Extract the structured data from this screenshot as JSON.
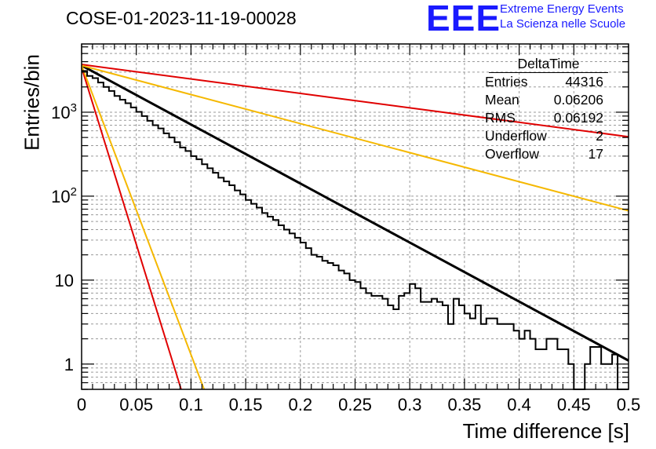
{
  "header": {
    "title": "COSE-01-2023-11-19-00028",
    "logo_text": "EEE",
    "logo_line1": "Extreme Energy Events",
    "logo_line2": "La Scienza nelle Scuole"
  },
  "stats_box": {
    "name": "DeltaTime",
    "rows": [
      {
        "label": "Entries",
        "value": "44316"
      },
      {
        "label": "Mean",
        "value": "0.06206"
      },
      {
        "label": "RMS",
        "value": "0.06192"
      },
      {
        "label": "Underflow",
        "value": "2"
      },
      {
        "label": "Overflow",
        "value": "17"
      }
    ]
  },
  "colors": {
    "histogram": "#000000",
    "fit": "#000000",
    "red": "#e00000",
    "orange": "#f5b800",
    "grid": "#9a9a9a",
    "logo": "#1a1aff"
  },
  "chart_data": {
    "type": "line",
    "xlabel": "Time difference [s]",
    "ylabel": "Entries/bin",
    "xlim": [
      0,
      0.5
    ],
    "ylim": [
      0.5,
      6500
    ],
    "y_scale": "log",
    "grid": true,
    "x_ticks": [
      "0",
      "0.05",
      "0.1",
      "0.15",
      "0.2",
      "0.25",
      "0.3",
      "0.35",
      "0.4",
      "0.45",
      "0.5"
    ],
    "y_ticks": [
      {
        "value": 1,
        "label": "1"
      },
      {
        "value": 10,
        "label": "10"
      },
      {
        "value": 100,
        "label": "10",
        "exp": "2"
      },
      {
        "value": 1000,
        "label": "10",
        "exp": "3"
      }
    ],
    "histogram": {
      "name": "DeltaTime",
      "bin_width": 0.005,
      "values": [
        3100,
        2700,
        2550,
        2260,
        2000,
        1790,
        1560,
        1410,
        1280,
        1140,
        1010,
        900,
        790,
        700,
        640,
        560,
        500,
        440,
        380,
        345,
        300,
        275,
        240,
        215,
        190,
        166,
        150,
        135,
        117,
        105,
        90,
        81,
        73,
        63,
        57,
        52,
        45,
        40,
        36,
        32,
        28,
        24,
        20,
        19,
        17,
        16,
        15,
        13,
        12,
        10,
        9.5,
        8,
        7,
        6.5,
        6.5,
        6,
        5,
        4.5,
        6.5,
        7,
        9,
        8,
        5.5,
        5.5,
        6,
        5.5,
        5,
        3,
        6,
        5,
        4,
        3.5,
        5,
        3,
        3.5,
        3.5,
        3,
        3,
        3,
        2.5,
        2,
        2.5,
        2,
        1.5,
        1.5,
        2,
        2,
        1.5,
        1.5,
        1,
        0.5,
        0.5,
        1,
        1.6,
        1.6,
        1,
        1,
        1.3,
        0.5,
        0.5
      ]
    },
    "series": [
      {
        "x": [
          0,
          0.5
        ],
        "y": [
          3600,
          1.1
        ]
      },
      {
        "x": [
          0,
          0.5
        ],
        "y": [
          3700,
          510
        ]
      },
      {
        "x": [
          0,
          0.5
        ],
        "y": [
          3600,
          67
        ]
      },
      {
        "x": [
          0,
          0.091
        ],
        "y": [
          3400,
          0.5
        ]
      },
      {
        "x": [
          0,
          0.112
        ],
        "y": [
          3600,
          0.5
        ]
      }
    ]
  }
}
